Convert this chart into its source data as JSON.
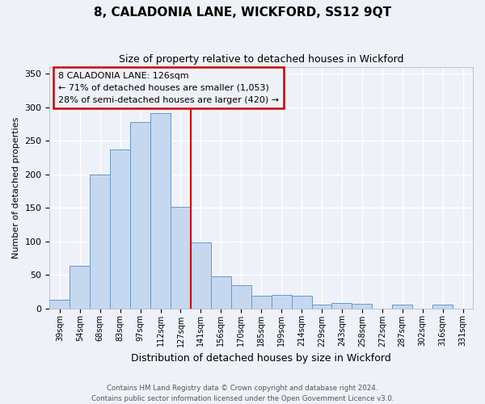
{
  "title": "8, CALADONIA LANE, WICKFORD, SS12 9QT",
  "subtitle": "Size of property relative to detached houses in Wickford",
  "xlabel": "Distribution of detached houses by size in Wickford",
  "ylabel": "Number of detached properties",
  "bar_labels": [
    "39sqm",
    "54sqm",
    "68sqm",
    "83sqm",
    "97sqm",
    "112sqm",
    "127sqm",
    "141sqm",
    "156sqm",
    "170sqm",
    "185sqm",
    "199sqm",
    "214sqm",
    "229sqm",
    "243sqm",
    "258sqm",
    "272sqm",
    "287sqm",
    "302sqm",
    "316sqm",
    "331sqm"
  ],
  "bar_values": [
    13,
    63,
    200,
    237,
    278,
    291,
    151,
    98,
    48,
    35,
    19,
    20,
    19,
    5,
    8,
    7,
    0,
    5,
    0,
    5,
    0
  ],
  "bar_color": "#c5d8f0",
  "bar_edge_color": "#6699cc",
  "highlight_index": 6,
  "highlight_line_color": "#cc0000",
  "annotation_line1": "8 CALADONIA LANE: 126sqm",
  "annotation_line2": "← 71% of detached houses are smaller (1,053)",
  "annotation_line3": "28% of semi-detached houses are larger (420) →",
  "annotation_box_color": "#cc0000",
  "ylim": [
    0,
    360
  ],
  "yticks": [
    0,
    50,
    100,
    150,
    200,
    250,
    300,
    350
  ],
  "footer_line1": "Contains HM Land Registry data © Crown copyright and database right 2024.",
  "footer_line2": "Contains public sector information licensed under the Open Government Licence v3.0.",
  "bg_color": "#eef2f8",
  "grid_color": "#ffffff"
}
